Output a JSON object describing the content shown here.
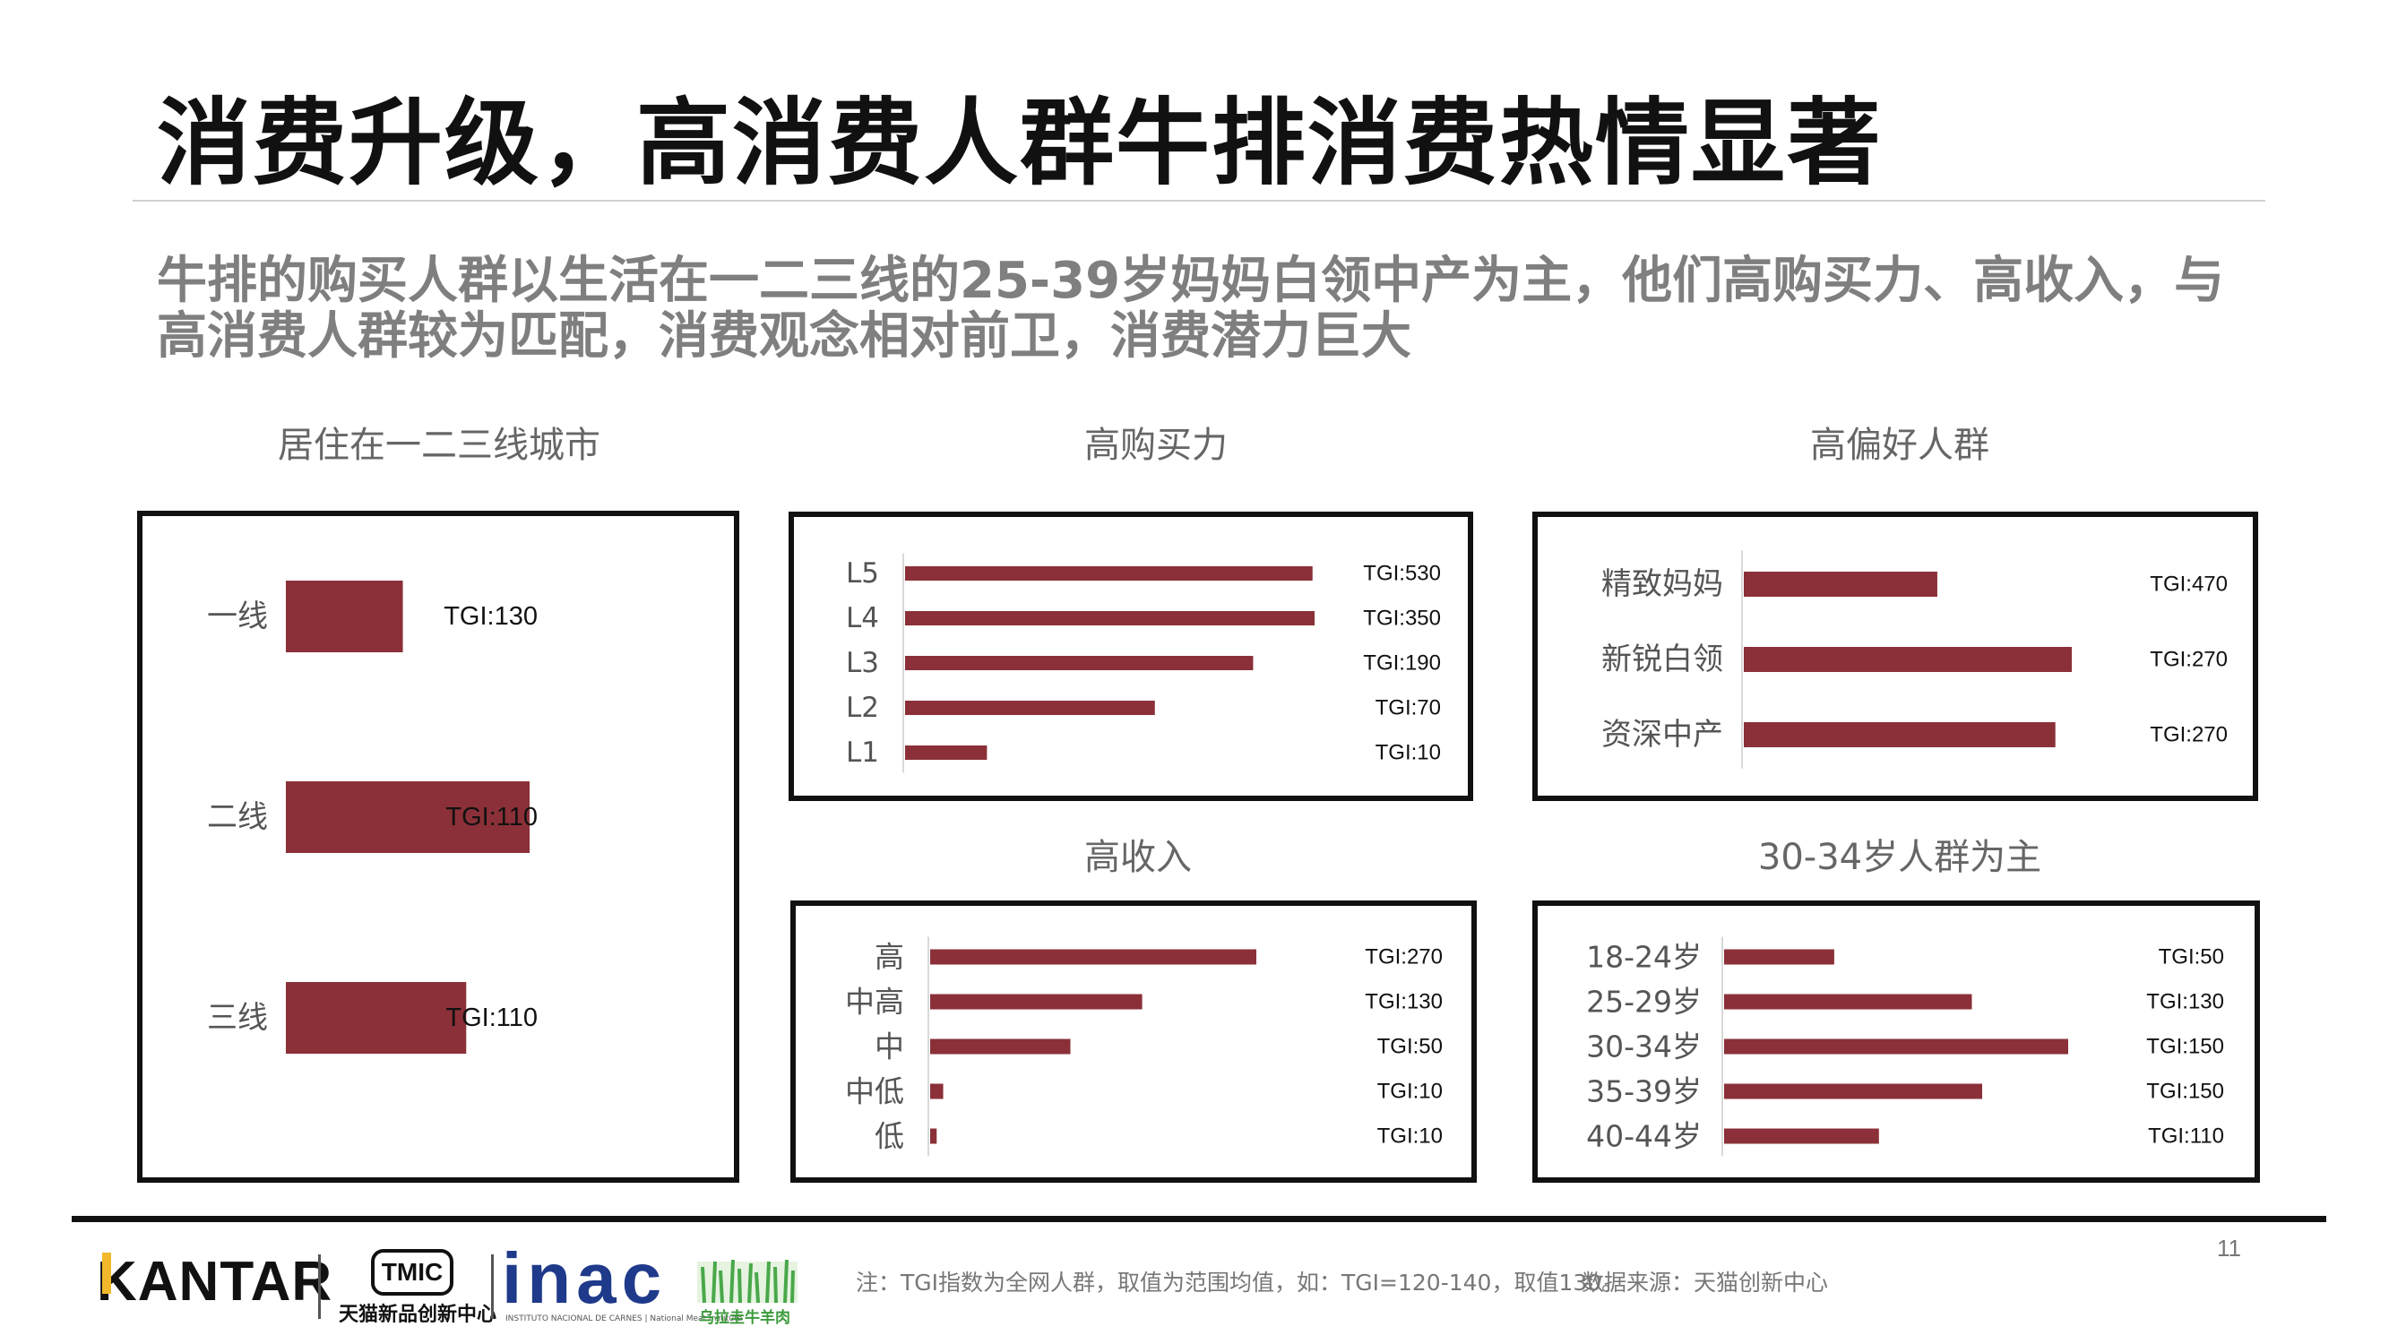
{
  "header": {
    "title": "消费升级，高消费人群牛排消费热情显著",
    "subtitle": "牛排的购买人群以生活在一二三线的25-39岁妈妈白领中产为主，他们高购买力、高收入，与高消费人群较为匹配，消费观念相对前卫，消费潜力巨大"
  },
  "colors": {
    "bar": "#8b3038",
    "border": "#111111",
    "title_text": "#111111",
    "subtitle_text": "#7f7f7f"
  },
  "chart_data": [
    {
      "id": "city",
      "type": "bar",
      "orientation": "horizontal",
      "title": "居住在一二三线城市",
      "categories": [
        "一线",
        "二线",
        "三线"
      ],
      "values": [
        130,
        110,
        110
      ],
      "bar_lengths_relative": [
        0.48,
        1.0,
        0.74
      ],
      "data_labels": [
        "TGI:130",
        "TGI:110",
        "TGI:110"
      ]
    },
    {
      "id": "purchasing",
      "type": "bar",
      "orientation": "horizontal",
      "title": "高购买力",
      "categories": [
        "L5",
        "L4",
        "L3",
        "L2",
        "L1"
      ],
      "values": [
        530,
        350,
        190,
        70,
        10
      ],
      "bar_lengths_relative": [
        0.995,
        1.0,
        0.85,
        0.61,
        0.2
      ],
      "data_labels": [
        "TGI:530",
        "TGI:350",
        "TGI:190",
        "TGI:70",
        "TGI:10"
      ]
    },
    {
      "id": "preference",
      "type": "bar",
      "orientation": "horizontal",
      "title": "高偏好人群",
      "categories": [
        "精致妈妈",
        "新锐白领",
        "资深中产"
      ],
      "values": [
        470,
        270,
        270
      ],
      "bar_lengths_relative": [
        0.59,
        1.0,
        0.95
      ],
      "data_labels": [
        "TGI:470",
        "TGI:270",
        "TGI:270"
      ]
    },
    {
      "id": "income",
      "type": "bar",
      "orientation": "horizontal",
      "title": "高收入",
      "categories": [
        "高",
        "中高",
        "中",
        "中低",
        "低"
      ],
      "values": [
        270,
        130,
        50,
        10,
        10
      ],
      "bar_lengths_relative": [
        1.0,
        0.65,
        0.43,
        0.04,
        0.02
      ],
      "data_labels": [
        "TGI:270",
        "TGI:130",
        "TGI:50",
        "TGI:10",
        "TGI:10"
      ]
    },
    {
      "id": "age",
      "type": "bar",
      "orientation": "horizontal",
      "title": "30-34岁人群为主",
      "categories": [
        "18-24岁",
        "25-29岁",
        "30-34岁",
        "35-39岁",
        "40-44岁"
      ],
      "values": [
        50,
        130,
        150,
        150,
        110
      ],
      "bar_lengths_relative": [
        0.32,
        0.72,
        1.0,
        0.75,
        0.45
      ],
      "data_labels": [
        "TGI:50",
        "TGI:130",
        "TGI:150",
        "TGI:150",
        "TGI:110"
      ]
    }
  ],
  "footer": {
    "page_number": "11",
    "note": "注：TGI指数为全网人群，取值为范围均值，如：TGI=120-140，取值130。",
    "source": "数据来源：天猫创新中心"
  },
  "logos": {
    "kantar": "KANTAR",
    "tmic_badge": "TMIC",
    "tmic_cn": "天猫新品创新中心",
    "inac": "inac",
    "inac_sub": "INSTITUTO NACIONAL DE CARNES | National Meat Institute",
    "uruguay_cn": "乌拉圭牛羊肉"
  }
}
